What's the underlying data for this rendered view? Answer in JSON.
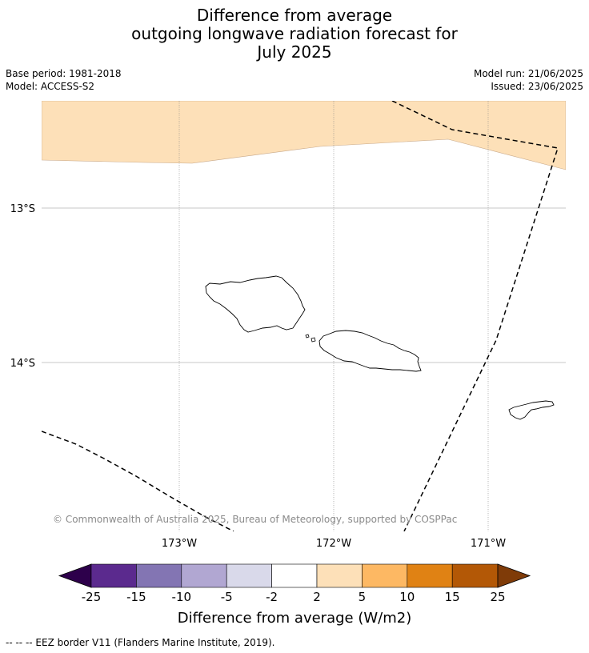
{
  "title": {
    "line1": "Difference from average",
    "line2": "outgoing longwave radiation forecast for",
    "line3": "July 2025"
  },
  "meta": {
    "base_period": "Base period: 1981-2018",
    "model": "Model: ACCESS-S2",
    "model_run": "Model run: 21/06/2025",
    "issued": "Issued: 23/06/2025"
  },
  "map": {
    "lat_labels": [
      "13°S",
      "14°S"
    ],
    "lon_labels": [
      "173°W",
      "172°W",
      "171°W"
    ],
    "copyright": "© Commonwealth of Australia 2025, Bureau of Meteorology, supported by COSPPac",
    "anomaly_fill_color": "#fde0b8"
  },
  "colorbar": {
    "title": "Difference from average (W/m2)",
    "ticks": [
      "-25",
      "-15",
      "-10",
      "-5",
      "-2",
      "2",
      "5",
      "10",
      "15",
      "25"
    ],
    "colors": [
      "#5b2a8e",
      "#8375b3",
      "#b1a7d2",
      "#d9d9ea",
      "#ffffff",
      "#fde0b8",
      "#fdb863",
      "#e08214",
      "#b35806"
    ],
    "under_color": "#2d004b",
    "over_color": "#7f3b08"
  },
  "footer": {
    "legend_text": "-- -- -- EEZ border V11 (Flanders Marine Institute, 2019)."
  }
}
